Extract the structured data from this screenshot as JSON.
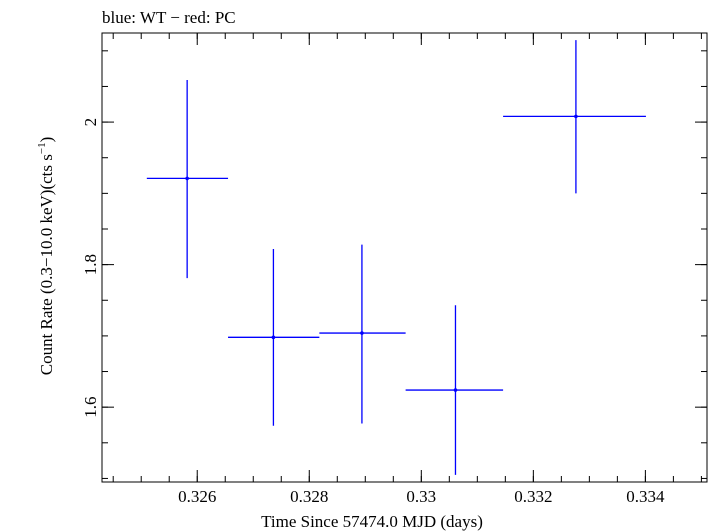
{
  "chart_data": {
    "type": "scatter",
    "title": "blue: WT − red: PC",
    "xlabel": "Time Since 57474.0 MJD (days)",
    "ylabel_parts": {
      "base": "Count Rate (0.3−10.0 keV)(cts s",
      "sup": "−1",
      "close": ")"
    },
    "xlim": [
      0.3243,
      0.3351
    ],
    "ylim": [
      1.495,
      2.125
    ],
    "x_ticks": [
      {
        "value": 0.326,
        "label": "0.326"
      },
      {
        "value": 0.328,
        "label": "0.328"
      },
      {
        "value": 0.33,
        "label": "0.33"
      },
      {
        "value": 0.332,
        "label": "0.332"
      },
      {
        "value": 0.334,
        "label": "0.334"
      }
    ],
    "y_ticks": [
      {
        "value": 1.6,
        "label": "1.6"
      },
      {
        "value": 1.8,
        "label": "1.8"
      },
      {
        "value": 2.0,
        "label": "2"
      }
    ],
    "series": [
      {
        "name": "WT",
        "color": "#0000ff",
        "points": [
          {
            "x": 0.32582,
            "xlo": 0.3251,
            "xhi": 0.32655,
            "y": 1.921,
            "ylo": 1.781,
            "yhi": 2.059
          },
          {
            "x": 0.32736,
            "xlo": 0.32655,
            "xhi": 0.32818,
            "y": 1.698,
            "ylo": 1.574,
            "yhi": 1.822
          },
          {
            "x": 0.32894,
            "xlo": 0.32818,
            "xhi": 0.32972,
            "y": 1.704,
            "ylo": 1.577,
            "yhi": 1.828
          },
          {
            "x": 0.33061,
            "xlo": 0.32972,
            "xhi": 0.33146,
            "y": 1.624,
            "ylo": 1.505,
            "yhi": 1.743
          },
          {
            "x": 0.33276,
            "xlo": 0.33146,
            "xhi": 0.33401,
            "y": 2.008,
            "ylo": 1.9,
            "yhi": 2.115
          }
        ]
      }
    ]
  }
}
